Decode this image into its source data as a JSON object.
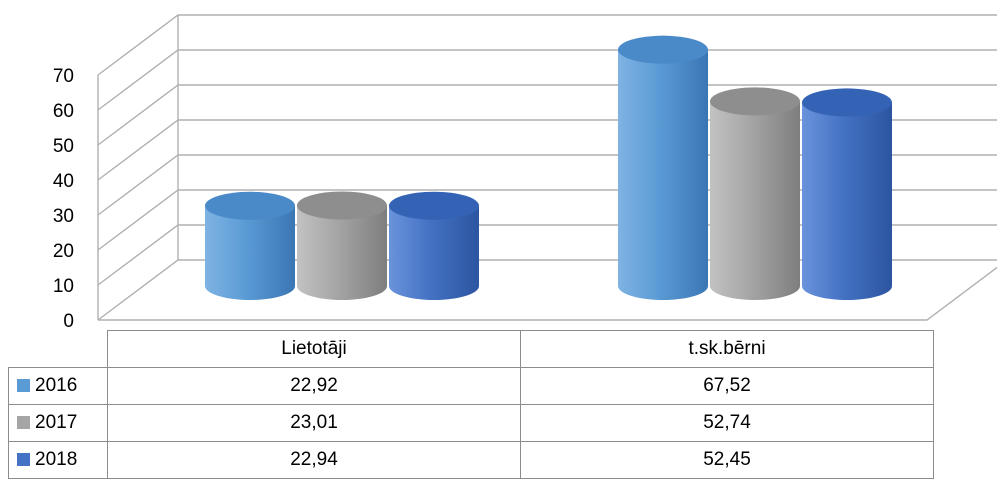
{
  "chart_data": {
    "type": "bar",
    "style": "3d-cylinder",
    "categories": [
      "Lietotāji",
      "t.sk.bērni"
    ],
    "series": [
      {
        "name": "2016",
        "values": [
          22.92,
          67.52
        ],
        "color": "#5b9bd5",
        "values_text": [
          "22,92",
          "67,52"
        ]
      },
      {
        "name": "2017",
        "values": [
          23.01,
          52.74
        ],
        "color": "#a5a5a5",
        "values_text": [
          "23,01",
          "52,74"
        ]
      },
      {
        "name": "2018",
        "values": [
          22.94,
          52.45
        ],
        "color": "#4472c4",
        "values_text": [
          "22,94",
          "52,45"
        ]
      }
    ],
    "ylim": [
      0,
      70
    ],
    "yticks": [
      "0",
      "10",
      "20",
      "30",
      "40",
      "50",
      "60",
      "70"
    ],
    "grid": true,
    "legend": "data-table"
  }
}
